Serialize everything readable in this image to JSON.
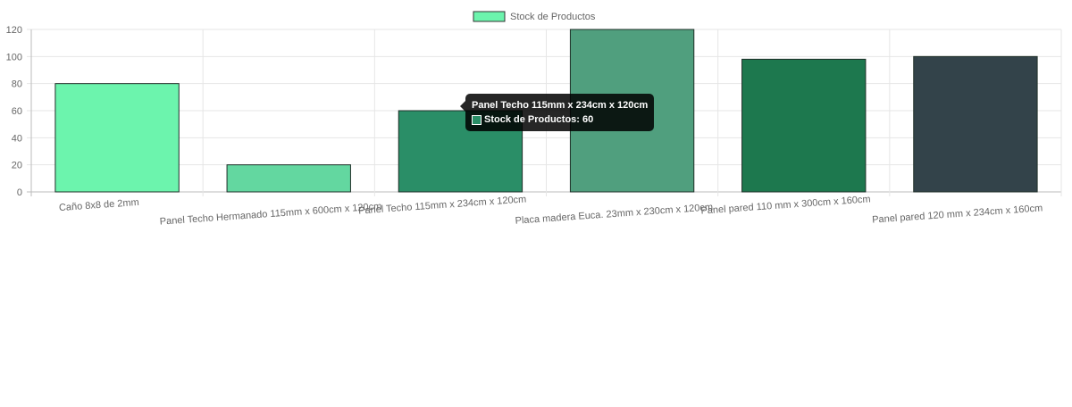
{
  "chart_data": {
    "type": "bar",
    "categories": [
      "Caño 8x8 de 2mm",
      "Panel Techo Hermanado 115mm x 600cm x 120cm",
      "Panel Techo 115mm x 234cm x 120cm",
      "Placa madera Euca. 23mm x 230cm x 120cm",
      "Panel pared 110 mm x 300cm x 160cm",
      "Panel pared 120 mm x 234cm x 160cm"
    ],
    "series": [
      {
        "name": "Stock de Productos",
        "values": [
          80,
          20,
          60,
          120,
          98,
          100
        ],
        "colors": [
          "#6cf4ad",
          "#63d7a0",
          "#2a8e67",
          "#509f7e",
          "#1d784e",
          "#33434a"
        ]
      }
    ],
    "ylim": [
      0,
      120
    ],
    "yticks": [
      0,
      20,
      40,
      60,
      80,
      100,
      120
    ],
    "grid": true,
    "legend": "top-center",
    "legend_color": "#6cf4ad"
  },
  "tooltip": {
    "title": "Panel Techo 115mm x 234cm x 120cm",
    "label": "Stock de Productos: 60",
    "swatch_color": "#2a8e67"
  }
}
